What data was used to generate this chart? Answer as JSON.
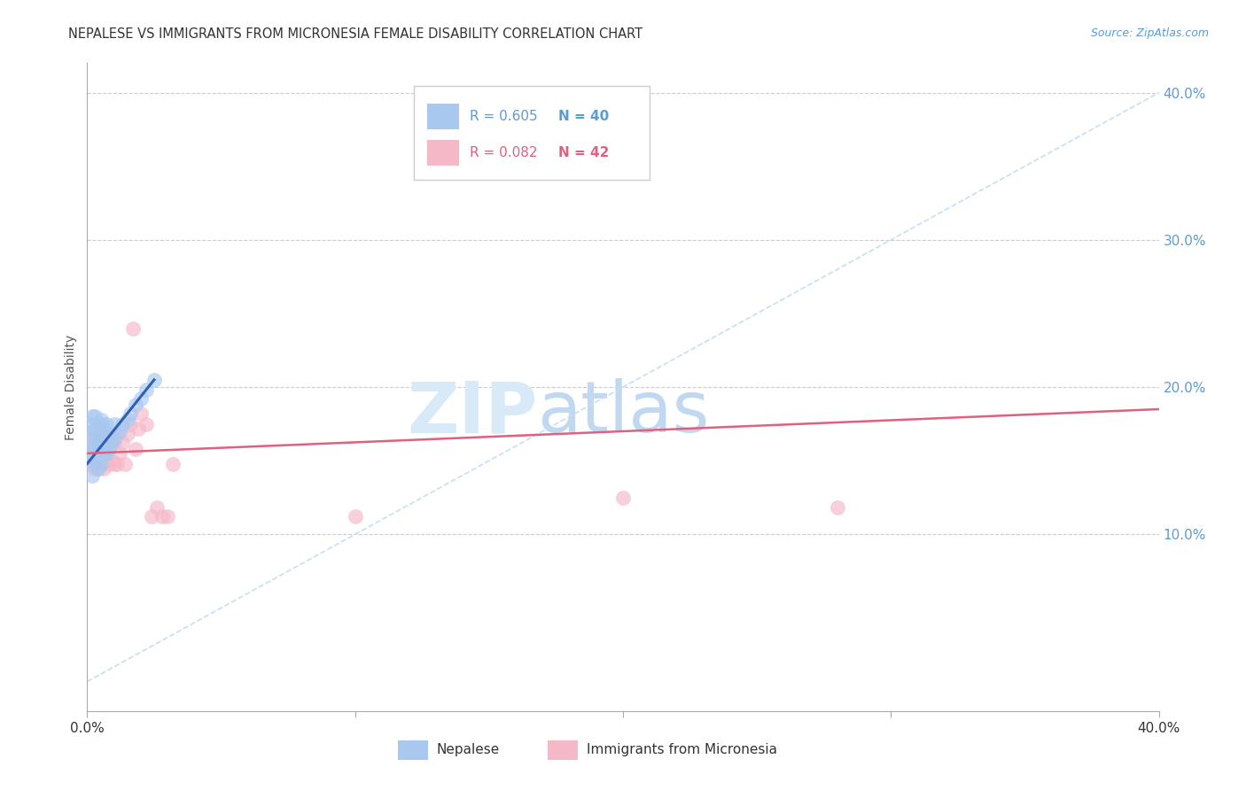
{
  "title": "NEPALESE VS IMMIGRANTS FROM MICRONESIA FEMALE DISABILITY CORRELATION CHART",
  "source": "Source: ZipAtlas.com",
  "ylabel": "Female Disability",
  "legend_blue_r": "R = 0.605",
  "legend_blue_n": "N = 40",
  "legend_pink_r": "R = 0.082",
  "legend_pink_n": "N = 42",
  "legend_label_blue": "Nepalese",
  "legend_label_pink": "Immigrants from Micronesia",
  "xlim": [
    0.0,
    0.4
  ],
  "ylim": [
    -0.02,
    0.42
  ],
  "yticks": [
    0.1,
    0.2,
    0.3,
    0.4
  ],
  "ytick_labels": [
    "10.0%",
    "20.0%",
    "30.0%",
    "40.0%"
  ],
  "xticks": [
    0.0,
    0.1,
    0.2,
    0.3,
    0.4
  ],
  "xtick_labels": [
    "0.0%",
    "",
    "",
    "",
    "40.0%"
  ],
  "blue_color": "#a8c8f0",
  "pink_color": "#f5b8c8",
  "blue_line_color": "#3060b0",
  "pink_line_color": "#e06080",
  "dashed_line_color": "#c5dff5",
  "nepalese_x": [
    0.001,
    0.001,
    0.001,
    0.002,
    0.002,
    0.002,
    0.002,
    0.002,
    0.003,
    0.003,
    0.003,
    0.003,
    0.003,
    0.004,
    0.004,
    0.004,
    0.004,
    0.005,
    0.005,
    0.005,
    0.005,
    0.006,
    0.006,
    0.006,
    0.007,
    0.007,
    0.007,
    0.008,
    0.008,
    0.009,
    0.01,
    0.01,
    0.012,
    0.013,
    0.015,
    0.016,
    0.018,
    0.02,
    0.022,
    0.025
  ],
  "nepalese_y": [
    0.15,
    0.16,
    0.175,
    0.14,
    0.152,
    0.16,
    0.17,
    0.18,
    0.148,
    0.158,
    0.165,
    0.172,
    0.18,
    0.145,
    0.155,
    0.165,
    0.175,
    0.148,
    0.158,
    0.168,
    0.178,
    0.155,
    0.162,
    0.172,
    0.155,
    0.165,
    0.175,
    0.158,
    0.168,
    0.162,
    0.165,
    0.175,
    0.17,
    0.175,
    0.178,
    0.182,
    0.188,
    0.192,
    0.198,
    0.205
  ],
  "micronesia_x": [
    0.001,
    0.002,
    0.002,
    0.003,
    0.003,
    0.004,
    0.004,
    0.004,
    0.005,
    0.005,
    0.005,
    0.006,
    0.006,
    0.006,
    0.007,
    0.007,
    0.008,
    0.008,
    0.009,
    0.009,
    0.01,
    0.01,
    0.011,
    0.011,
    0.012,
    0.013,
    0.014,
    0.015,
    0.016,
    0.017,
    0.018,
    0.019,
    0.02,
    0.022,
    0.024,
    0.026,
    0.028,
    0.03,
    0.032,
    0.1,
    0.2,
    0.28
  ],
  "micronesia_y": [
    0.16,
    0.148,
    0.165,
    0.145,
    0.168,
    0.145,
    0.158,
    0.172,
    0.148,
    0.162,
    0.175,
    0.145,
    0.158,
    0.168,
    0.15,
    0.168,
    0.148,
    0.162,
    0.15,
    0.165,
    0.148,
    0.162,
    0.148,
    0.168,
    0.155,
    0.162,
    0.148,
    0.168,
    0.175,
    0.24,
    0.158,
    0.172,
    0.182,
    0.175,
    0.112,
    0.118,
    0.112,
    0.112,
    0.148,
    0.112,
    0.125,
    0.118
  ],
  "blue_line_x0": 0.0,
  "blue_line_y0": 0.148,
  "blue_line_x1": 0.025,
  "blue_line_y1": 0.205,
  "pink_line_x0": 0.0,
  "pink_line_y0": 0.155,
  "pink_line_x1": 0.4,
  "pink_line_y1": 0.185
}
